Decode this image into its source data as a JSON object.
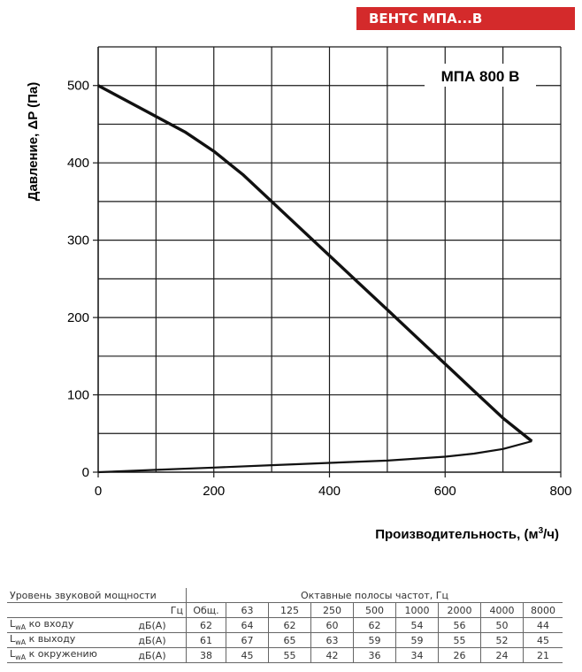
{
  "header": {
    "badge": "ВЕНТС МПА...В"
  },
  "chart_data": {
    "type": "line",
    "model_label": "МПА 800 В",
    "xlabel": "Производительность, (м³/ч)",
    "ylabel": "Давление, ΔP (Па)",
    "xlim": [
      0,
      800
    ],
    "ylim": [
      0,
      550
    ],
    "x_ticks": [
      "0",
      "200",
      "400",
      "600",
      "800"
    ],
    "y_ticks": [
      "0",
      "100",
      "200",
      "300",
      "400",
      "500"
    ],
    "grid": true,
    "series": [
      {
        "points": [
          [
            0,
            500
          ],
          [
            100,
            460
          ],
          [
            150,
            440
          ],
          [
            200,
            415
          ],
          [
            250,
            385
          ],
          [
            300,
            350
          ],
          [
            350,
            315
          ],
          [
            400,
            280
          ],
          [
            450,
            245
          ],
          [
            500,
            210
          ],
          [
            550,
            175
          ],
          [
            600,
            140
          ],
          [
            650,
            105
          ],
          [
            700,
            70
          ],
          [
            750,
            40
          ]
        ]
      },
      {
        "points": [
          [
            750,
            40
          ],
          [
            700,
            30
          ],
          [
            650,
            24
          ],
          [
            600,
            20
          ],
          [
            500,
            15
          ],
          [
            400,
            12
          ],
          [
            300,
            9
          ],
          [
            200,
            6
          ],
          [
            100,
            3
          ],
          [
            0,
            0
          ]
        ]
      }
    ]
  },
  "table": {
    "title": "Уровень звуковой мощности",
    "bands_title": "Октавные полосы частот, Гц",
    "unit_hz": "Гц",
    "headers": [
      "Общ.",
      "63",
      "125",
      "250",
      "500",
      "1000",
      "2000",
      "4000",
      "8000"
    ],
    "rows": [
      {
        "label_main": "L",
        "label_sub": "wA",
        "label_rest": " ко входу",
        "unit": "дБ(А)",
        "values": [
          "62",
          "64",
          "62",
          "60",
          "62",
          "54",
          "56",
          "50",
          "44"
        ]
      },
      {
        "label_main": "L",
        "label_sub": "wA",
        "label_rest": " к выходу",
        "unit": "дБ(А)",
        "values": [
          "61",
          "67",
          "65",
          "63",
          "59",
          "59",
          "55",
          "52",
          "45"
        ]
      },
      {
        "label_main": "L",
        "label_sub": "wA",
        "label_rest": " к окружению",
        "unit": "дБ(А)",
        "values": [
          "38",
          "45",
          "55",
          "42",
          "36",
          "34",
          "26",
          "24",
          "21"
        ]
      }
    ]
  }
}
